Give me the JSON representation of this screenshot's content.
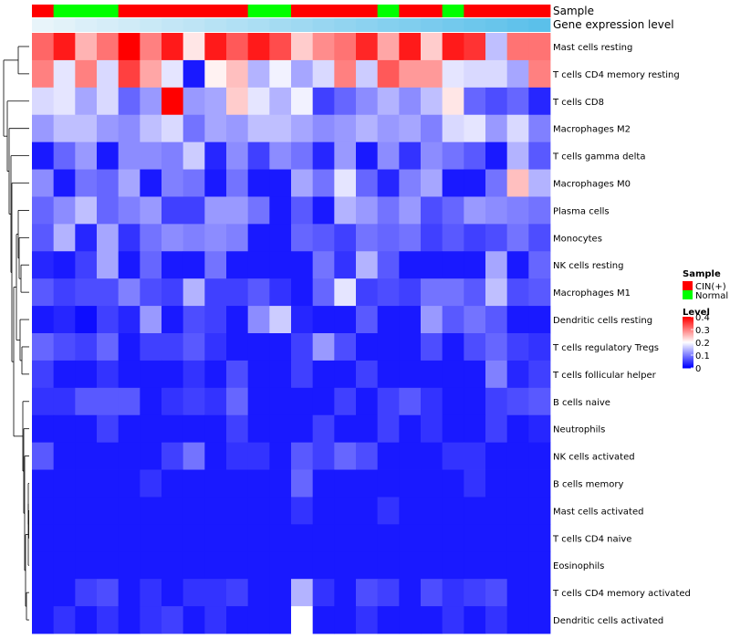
{
  "chart_data": {
    "type": "heatmap",
    "annotation_labels": {
      "sample": "Sample",
      "expression": "Gene expression level"
    },
    "sample_groups": [
      "CIN(+)",
      "Normal",
      "Normal",
      "Normal",
      "CIN(+)",
      "CIN(+)",
      "CIN(+)",
      "CIN(+)",
      "CIN(+)",
      "CIN(+)",
      "Normal",
      "Normal",
      "CIN(+)",
      "CIN(+)",
      "CIN(+)",
      "CIN(+)",
      "Normal",
      "CIN(+)",
      "CIN(+)",
      "Normal",
      "CIN(+)",
      "CIN(+)",
      "CIN(+)",
      "CIN(+)"
    ],
    "expression_levels": [
      0.0,
      0.04,
      0.09,
      0.13,
      0.17,
      0.22,
      0.26,
      0.3,
      0.35,
      0.39,
      0.43,
      0.48,
      0.52,
      0.57,
      0.61,
      0.65,
      0.7,
      0.74,
      0.78,
      0.83,
      0.87,
      0.91,
      0.96,
      1.0
    ],
    "rows": [
      "Mast cells resting",
      "T cells CD4 memory resting",
      "T cells CD8",
      "Macrophages M2",
      "T cells gamma delta",
      "Macrophages M0",
      "Plasma cells",
      "Monocytes",
      "NK cells resting",
      "Macrophages M1",
      "Dendritic cells resting",
      "T cells regulatory  Tregs",
      "T cells follicular helper",
      "B cells naive",
      "Neutrophils",
      "NK cells activated",
      "B cells memory",
      "Mast cells activated",
      "T cells CD4 naive",
      "Eosinophils",
      "T cells CD4 memory activated",
      "Dendritic cells activated"
    ],
    "values": [
      [
        0.32,
        0.38,
        0.26,
        0.31,
        0.4,
        0.3,
        0.38,
        0.22,
        0.38,
        0.33,
        0.38,
        0.34,
        0.24,
        0.29,
        0.31,
        0.37,
        0.27,
        0.38,
        0.24,
        0.38,
        0.36,
        0.15,
        0.31,
        0.31
      ],
      [
        0.3,
        0.18,
        0.3,
        0.17,
        0.35,
        0.27,
        0.18,
        0.02,
        0.21,
        0.25,
        0.14,
        0.19,
        0.13,
        0.17,
        0.3,
        0.16,
        0.33,
        0.28,
        0.28,
        0.18,
        0.17,
        0.17,
        0.13,
        0.3
      ],
      [
        0.17,
        0.18,
        0.13,
        0.17,
        0.08,
        0.12,
        0.4,
        0.12,
        0.13,
        0.24,
        0.18,
        0.14,
        0.19,
        0.05,
        0.08,
        0.11,
        0.14,
        0.11,
        0.15,
        0.22,
        0.08,
        0.06,
        0.08,
        0.03
      ],
      [
        0.12,
        0.15,
        0.15,
        0.12,
        0.11,
        0.15,
        0.17,
        0.09,
        0.13,
        0.12,
        0.15,
        0.15,
        0.13,
        0.11,
        0.12,
        0.14,
        0.12,
        0.13,
        0.1,
        0.17,
        0.18,
        0.12,
        0.17,
        0.1
      ],
      [
        0.02,
        0.08,
        0.12,
        0.02,
        0.11,
        0.11,
        0.1,
        0.16,
        0.03,
        0.11,
        0.05,
        0.11,
        0.09,
        0.03,
        0.12,
        0.02,
        0.11,
        0.04,
        0.11,
        0.09,
        0.07,
        0.02,
        0.14,
        0.07
      ],
      [
        0.11,
        0.02,
        0.09,
        0.08,
        0.13,
        0.02,
        0.1,
        0.09,
        0.02,
        0.09,
        0.02,
        0.02,
        0.13,
        0.09,
        0.18,
        0.08,
        0.03,
        0.1,
        0.13,
        0.02,
        0.02,
        0.09,
        0.25,
        0.14
      ],
      [
        0.08,
        0.11,
        0.15,
        0.08,
        0.1,
        0.12,
        0.05,
        0.05,
        0.12,
        0.12,
        0.09,
        0.02,
        0.07,
        0.02,
        0.14,
        0.12,
        0.09,
        0.12,
        0.06,
        0.08,
        0.12,
        0.11,
        0.1,
        0.09
      ],
      [
        0.07,
        0.14,
        0.03,
        0.13,
        0.04,
        0.09,
        0.11,
        0.1,
        0.11,
        0.1,
        0.02,
        0.02,
        0.08,
        0.07,
        0.05,
        0.09,
        0.08,
        0.09,
        0.05,
        0.07,
        0.05,
        0.06,
        0.09,
        0.06
      ],
      [
        0.03,
        0.02,
        0.05,
        0.13,
        0.02,
        0.08,
        0.02,
        0.02,
        0.09,
        0.02,
        0.02,
        0.02,
        0.02,
        0.09,
        0.04,
        0.14,
        0.07,
        0.02,
        0.02,
        0.02,
        0.02,
        0.13,
        0.02,
        0.08
      ],
      [
        0.07,
        0.05,
        0.06,
        0.06,
        0.1,
        0.06,
        0.05,
        0.14,
        0.05,
        0.05,
        0.07,
        0.04,
        0.02,
        0.08,
        0.18,
        0.05,
        0.06,
        0.05,
        0.09,
        0.09,
        0.07,
        0.15,
        0.06,
        0.07
      ],
      [
        0.02,
        0.03,
        0.01,
        0.05,
        0.03,
        0.12,
        0.02,
        0.06,
        0.05,
        0.02,
        0.11,
        0.16,
        0.03,
        0.02,
        0.02,
        0.07,
        0.02,
        0.02,
        0.12,
        0.07,
        0.09,
        0.07,
        0.02,
        0.02
      ],
      [
        0.08,
        0.06,
        0.05,
        0.08,
        0.02,
        0.05,
        0.05,
        0.07,
        0.04,
        0.02,
        0.02,
        0.02,
        0.05,
        0.12,
        0.06,
        0.02,
        0.02,
        0.02,
        0.06,
        0.02,
        0.06,
        0.08,
        0.05,
        0.04
      ],
      [
        0.05,
        0.02,
        0.02,
        0.04,
        0.02,
        0.02,
        0.02,
        0.04,
        0.02,
        0.06,
        0.02,
        0.02,
        0.05,
        0.02,
        0.02,
        0.05,
        0.02,
        0.02,
        0.02,
        0.02,
        0.02,
        0.1,
        0.03,
        0.05
      ],
      [
        0.04,
        0.04,
        0.07,
        0.07,
        0.07,
        0.02,
        0.04,
        0.05,
        0.04,
        0.08,
        0.02,
        0.02,
        0.02,
        0.02,
        0.05,
        0.02,
        0.05,
        0.07,
        0.04,
        0.02,
        0.02,
        0.05,
        0.06,
        0.07
      ],
      [
        0.02,
        0.02,
        0.02,
        0.05,
        0.02,
        0.02,
        0.02,
        0.02,
        0.02,
        0.05,
        0.02,
        0.02,
        0.02,
        0.05,
        0.02,
        0.02,
        0.05,
        0.02,
        0.04,
        0.02,
        0.02,
        0.05,
        0.02,
        0.03
      ],
      [
        0.07,
        0.02,
        0.02,
        0.02,
        0.02,
        0.02,
        0.05,
        0.09,
        0.02,
        0.04,
        0.04,
        0.02,
        0.07,
        0.05,
        0.08,
        0.06,
        0.02,
        0.02,
        0.02,
        0.04,
        0.04,
        0.02,
        0.02,
        0.02
      ],
      [
        0.02,
        0.02,
        0.02,
        0.02,
        0.02,
        0.04,
        0.02,
        0.02,
        0.02,
        0.02,
        0.02,
        0.02,
        0.08,
        0.02,
        0.02,
        0.02,
        0.02,
        0.02,
        0.02,
        0.02,
        0.04,
        0.02,
        0.02,
        0.02
      ],
      [
        0.02,
        0.02,
        0.02,
        0.02,
        0.02,
        0.02,
        0.02,
        0.02,
        0.02,
        0.02,
        0.02,
        0.02,
        0.04,
        0.02,
        0.02,
        0.02,
        0.04,
        0.02,
        0.02,
        0.02,
        0.02,
        0.02,
        0.02,
        0.02
      ],
      [
        0.02,
        0.02,
        0.02,
        0.02,
        0.02,
        0.02,
        0.02,
        0.02,
        0.02,
        0.02,
        0.02,
        0.02,
        0.02,
        0.02,
        0.02,
        0.02,
        0.02,
        0.02,
        0.02,
        0.02,
        0.02,
        0.02,
        0.02,
        0.02
      ],
      [
        0.02,
        0.02,
        0.02,
        0.02,
        0.02,
        0.02,
        0.02,
        0.02,
        0.02,
        0.02,
        0.02,
        0.02,
        0.02,
        0.02,
        0.02,
        0.02,
        0.02,
        0.02,
        0.02,
        0.02,
        0.02,
        0.02,
        0.02,
        0.02
      ],
      [
        0.02,
        0.02,
        0.05,
        0.06,
        0.02,
        0.04,
        0.02,
        0.04,
        0.04,
        0.05,
        0.02,
        0.02,
        0.14,
        0.04,
        0.02,
        0.06,
        0.05,
        0.02,
        0.06,
        0.04,
        0.05,
        0.06,
        0.02,
        0.02
      ],
      [
        0.02,
        0.04,
        0.02,
        0.04,
        0.02,
        0.04,
        0.05,
        0.02,
        0.04,
        0.02,
        0.02,
        0.02,
        0.2,
        0.02,
        0.02,
        0.04,
        0.02,
        0.02,
        0.02,
        0.04,
        0.02,
        0.04,
        0.02,
        0.02
      ]
    ],
    "legend": {
      "sample_title": "Sample",
      "sample_entries": [
        {
          "label": "CIN(+)",
          "color": "#ff0000"
        },
        {
          "label": "Normal",
          "color": "#00ff00"
        }
      ],
      "level_title": "Level",
      "level_ticks": [
        0.4,
        0.3,
        0.2,
        0.1,
        0
      ]
    },
    "color_scale": {
      "low": "#0000ff",
      "mid": "#ffffff",
      "high": "#ff0000",
      "min": 0,
      "mid_value": 0.2,
      "max": 0.4
    },
    "expression_scale": {
      "low": "#e8f4fa",
      "high": "#5bc0ea"
    }
  }
}
